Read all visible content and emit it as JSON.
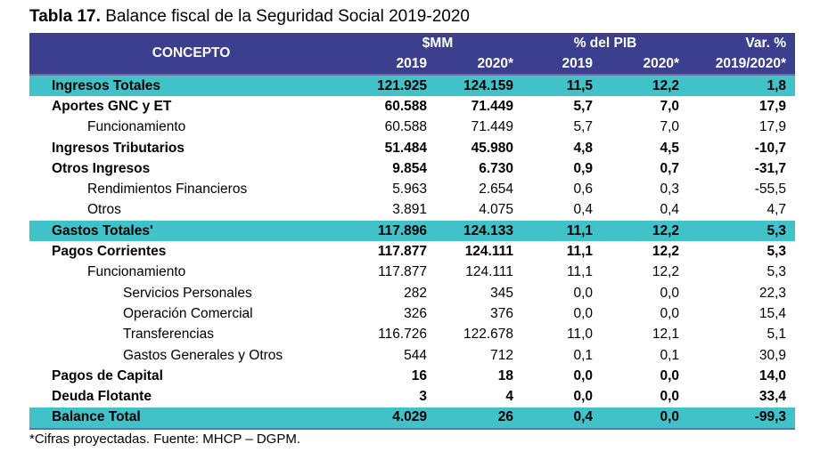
{
  "title": {
    "number": "Tabla 17.",
    "text": "Balance fiscal de la Seguridad Social 2019-2020"
  },
  "header": {
    "concept": "CONCEPTO",
    "group_mm": "$MM",
    "group_pib": "% del PIB",
    "group_var": "Var. %",
    "y2019_mm": "2019",
    "y2020_mm": "2020*",
    "y2019_pib": "2019",
    "y2020_pib": "2020*",
    "var_period": "2019/2020*"
  },
  "rows": [
    {
      "concept": "Ingresos Totales",
      "mm2019": "121.925",
      "mm2020": "124.159",
      "pib2019": "11,5",
      "pib2020": "12,2",
      "var": "1,8"
    },
    {
      "concept": "Aportes GNC y ET",
      "mm2019": "60.588",
      "mm2020": "71.449",
      "pib2019": "5,7",
      "pib2020": "7,0",
      "var": "17,9"
    },
    {
      "concept": "Funcionamiento",
      "mm2019": "60.588",
      "mm2020": "71.449",
      "pib2019": "5,7",
      "pib2020": "7,0",
      "var": "17,9"
    },
    {
      "concept": "Ingresos Tributarios",
      "mm2019": "51.484",
      "mm2020": "45.980",
      "pib2019": "4,8",
      "pib2020": "4,5",
      "var": "-10,7"
    },
    {
      "concept": "Otros Ingresos",
      "mm2019": "9.854",
      "mm2020": "6.730",
      "pib2019": "0,9",
      "pib2020": "0,7",
      "var": "-31,7"
    },
    {
      "concept": "Rendimientos Financieros",
      "mm2019": "5.963",
      "mm2020": "2.654",
      "pib2019": "0,6",
      "pib2020": "0,3",
      "var": "-55,5"
    },
    {
      "concept": "Otros",
      "mm2019": "3.891",
      "mm2020": "4.075",
      "pib2019": "0,4",
      "pib2020": "0,4",
      "var": "4,7"
    },
    {
      "concept": "Gastos Totales'",
      "mm2019": "117.896",
      "mm2020": "124.133",
      "pib2019": "11,1",
      "pib2020": "12,2",
      "var": "5,3"
    },
    {
      "concept": "Pagos Corrientes",
      "mm2019": "117.877",
      "mm2020": "124.111",
      "pib2019": "11,1",
      "pib2020": "12,2",
      "var": "5,3"
    },
    {
      "concept": "Funcionamiento",
      "mm2019": "117.877",
      "mm2020": "124.111",
      "pib2019": "11,1",
      "pib2020": "12,2",
      "var": "5,3"
    },
    {
      "concept": "Servicios Personales",
      "mm2019": "282",
      "mm2020": "345",
      "pib2019": "0,0",
      "pib2020": "0,0",
      "var": "22,3"
    },
    {
      "concept": "Operación Comercial",
      "mm2019": "326",
      "mm2020": "376",
      "pib2019": "0,0",
      "pib2020": "0,0",
      "var": "15,4"
    },
    {
      "concept": "Transferencias",
      "mm2019": "116.726",
      "mm2020": "122.678",
      "pib2019": "11,0",
      "pib2020": "12,1",
      "var": "5,1"
    },
    {
      "concept": "Gastos Generales y Otros",
      "mm2019": "544",
      "mm2020": "712",
      "pib2019": "0,1",
      "pib2020": "0,1",
      "var": "30,9"
    },
    {
      "concept": "Pagos de Capital",
      "mm2019": "16",
      "mm2020": "18",
      "pib2019": "0,0",
      "pib2020": "0,0",
      "var": "14,0"
    },
    {
      "concept": "Deuda Flotante",
      "mm2019": "3",
      "mm2020": "4",
      "pib2019": "0,0",
      "pib2020": "0,0",
      "var": "33,4"
    },
    {
      "concept": "Balance Total",
      "mm2019": "4.029",
      "mm2020": "26",
      "pib2019": "0,4",
      "pib2020": "0,0",
      "var": "-99,3"
    }
  ],
  "footnote": "*Cifras proyectadas. Fuente: MHCP – DGPM.",
  "colors": {
    "header_bg": "#3b3f8e",
    "highlight_bg": "#41c2c9"
  }
}
